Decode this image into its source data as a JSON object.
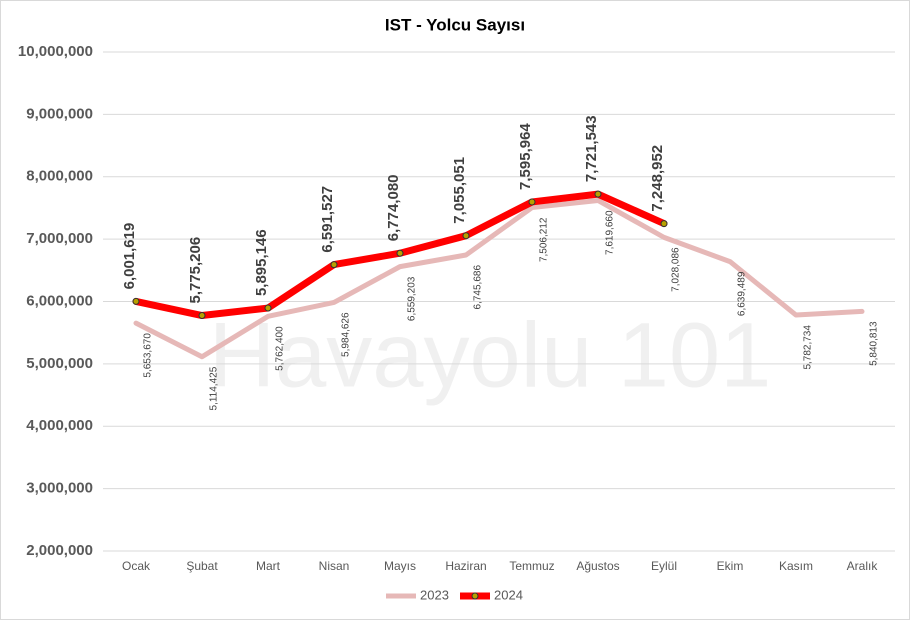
{
  "chart_data": {
    "type": "line",
    "title": "IST - Yolcu Sayısı",
    "watermark": "Havayolu 101",
    "categories": [
      "Ocak",
      "Şubat",
      "Mart",
      "Nisan",
      "Mayıs",
      "Haziran",
      "Temmuz",
      "Ağustos",
      "Eylül",
      "Ekim",
      "Kasım",
      "Aralık"
    ],
    "series": [
      {
        "name": "2023",
        "color": "#e6b8b7",
        "line_width": 5,
        "values": [
          5653670,
          5114425,
          5762400,
          5984626,
          6559203,
          6745686,
          7506212,
          7619660,
          7028086,
          6639489,
          5782734,
          5840813
        ],
        "value_labels": [
          "5,653,670",
          "5,114,425",
          "5,762,400",
          "5,984,626",
          "6,559,203",
          "6,745,686",
          "7,506,212",
          "7,619,660",
          "7,028,086",
          "6,639,489",
          "5,782,734",
          "5,840,813"
        ]
      },
      {
        "name": "2024",
        "color": "#ff0000",
        "line_width": 7,
        "marker_color": "#b8a000",
        "values": [
          6001619,
          5775206,
          5895146,
          6591527,
          6774080,
          7055051,
          7595964,
          7721543,
          7248952,
          null,
          null,
          null
        ],
        "value_labels": [
          "6,001,619",
          "5,775,206",
          "5,895,146",
          "6,591,527",
          "6,774,080",
          "7,055,051",
          "7,595,964",
          "7,721,543",
          "7,248,952",
          null,
          null,
          null
        ]
      }
    ],
    "ylim": [
      2000000,
      10000000
    ],
    "yticks": [
      {
        "value": 2000000,
        "label": "2,000,000"
      },
      {
        "value": 3000000,
        "label": "3,000,000"
      },
      {
        "value": 4000000,
        "label": "4,000,000"
      },
      {
        "value": 5000000,
        "label": "5,000,000"
      },
      {
        "value": 6000000,
        "label": "6,000,000"
      },
      {
        "value": 7000000,
        "label": "7,000,000"
      },
      {
        "value": 8000000,
        "label": "8,000,000"
      },
      {
        "value": 9000000,
        "label": "9,000,000"
      },
      {
        "value": 10000000,
        "label": "10,000,000"
      }
    ],
    "grid": true,
    "legend": "bottom"
  }
}
